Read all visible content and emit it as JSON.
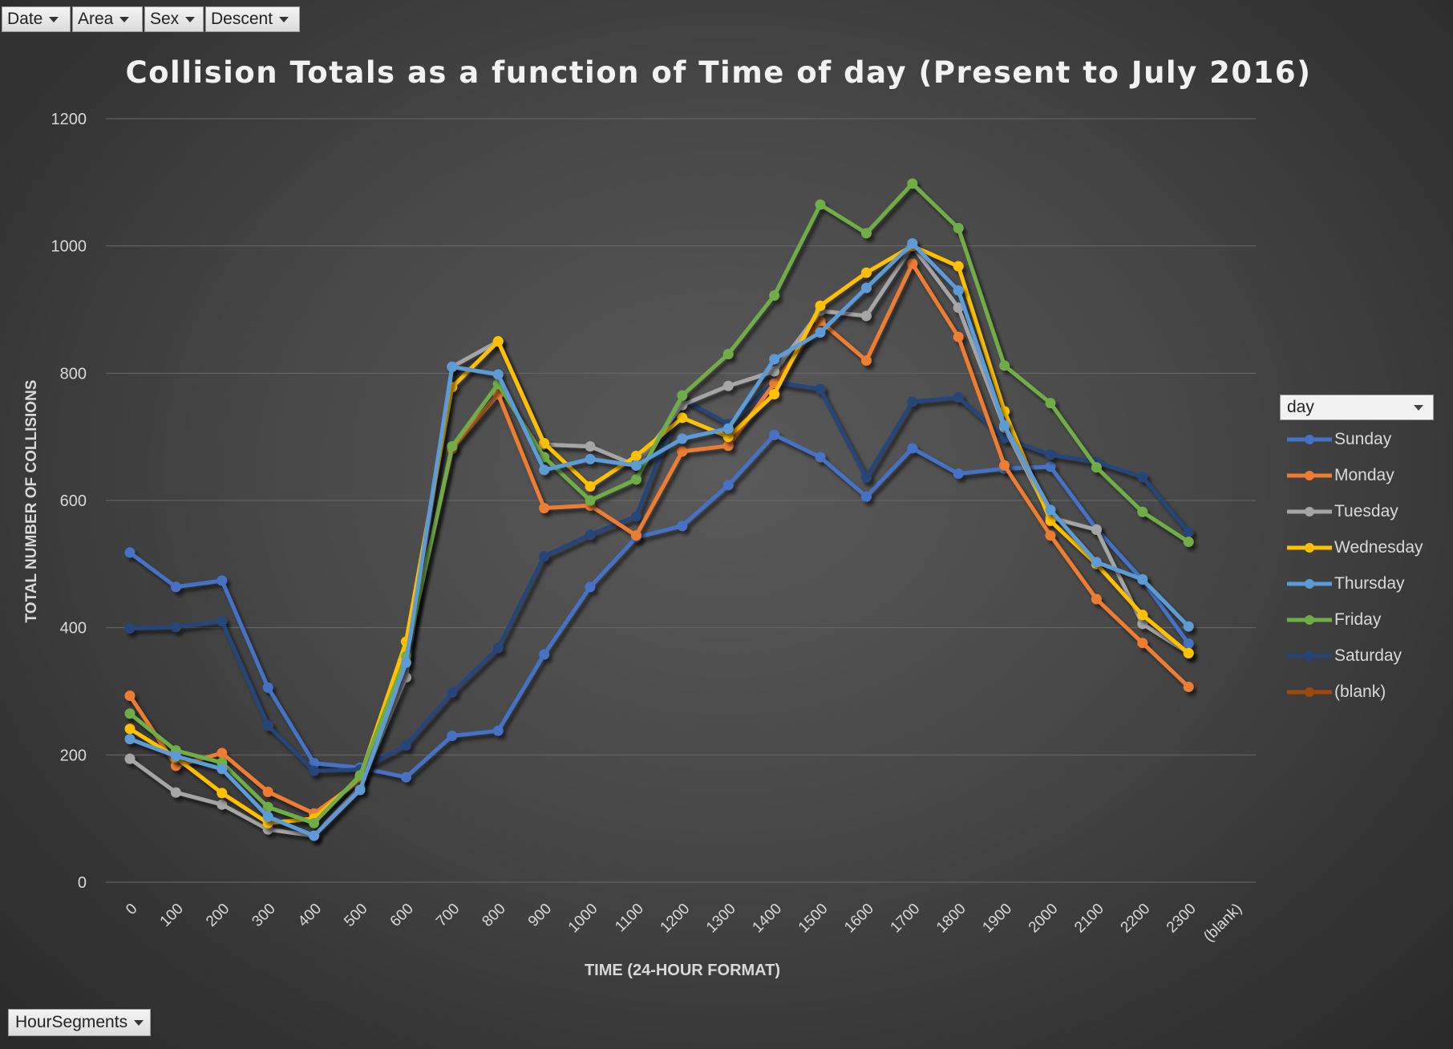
{
  "filters": [
    {
      "label": "Date",
      "name": "date-filter-button"
    },
    {
      "label": "Area",
      "name": "area-filter-button"
    },
    {
      "label": "Sex",
      "name": "sex-filter-button"
    },
    {
      "label": "Descent",
      "name": "descent-filter-button"
    }
  ],
  "bottom_filter": {
    "label": "HourSegments"
  },
  "legend": {
    "dropdown_label": "day"
  },
  "colors": {
    "gridline": "#6a6a6a",
    "text": "#d9d9d9"
  },
  "chart_data": {
    "type": "line",
    "title": "Collision Totals as a function of Time of day (Present to July 2016)",
    "xlabel": "TIME (24-HOUR FORMAT)",
    "ylabel": "TOTAL NUMBER OF COLLISIONS",
    "ylim": [
      0,
      1200
    ],
    "yticks": [
      0,
      200,
      400,
      600,
      800,
      1000,
      1200
    ],
    "grid": true,
    "legend_position": "right",
    "categories": [
      "0",
      "100",
      "200",
      "300",
      "400",
      "500",
      "600",
      "700",
      "800",
      "900",
      "1000",
      "1100",
      "1200",
      "1300",
      "1400",
      "1500",
      "1600",
      "1700",
      "1800",
      "1900",
      "2000",
      "2100",
      "2200",
      "2300",
      "(blank)"
    ],
    "series": [
      {
        "name": "Sunday",
        "color": "#4472c4",
        "values": [
          518,
          464,
          474,
          306,
          187,
          180,
          165,
          230,
          238,
          358,
          464,
          542,
          560,
          624,
          703,
          668,
          606,
          682,
          642,
          650,
          653,
          555,
          475,
          375,
          null
        ]
      },
      {
        "name": "Monday",
        "color": "#ed7d31",
        "values": [
          293,
          183,
          203,
          142,
          108,
          160,
          360,
          681,
          767,
          588,
          592,
          545,
          677,
          686,
          784,
          882,
          820,
          972,
          857,
          655,
          545,
          445,
          376,
          307,
          null
        ]
      },
      {
        "name": "Tuesday",
        "color": "#a5a5a5",
        "values": [
          194,
          141,
          122,
          83,
          73,
          150,
          322,
          810,
          850,
          688,
          685,
          655,
          750,
          780,
          803,
          898,
          890,
          1000,
          903,
          715,
          573,
          554,
          406,
          360,
          null
        ]
      },
      {
        "name": "Wednesday",
        "color": "#ffc000",
        "values": [
          241,
          196,
          140,
          93,
          100,
          165,
          378,
          778,
          850,
          690,
          622,
          670,
          730,
          700,
          767,
          906,
          958,
          1000,
          968,
          740,
          568,
          500,
          420,
          360,
          null
        ]
      },
      {
        "name": "Thursday",
        "color": "#5b9bd5",
        "values": [
          225,
          198,
          178,
          103,
          73,
          145,
          345,
          810,
          798,
          648,
          665,
          655,
          697,
          713,
          822,
          864,
          934,
          1004,
          930,
          718,
          585,
          503,
          476,
          402,
          null
        ]
      },
      {
        "name": "Friday",
        "color": "#70ad47",
        "values": [
          265,
          207,
          188,
          118,
          93,
          168,
          355,
          685,
          783,
          668,
          600,
          633,
          765,
          830,
          922,
          1065,
          1020,
          1098,
          1028,
          812,
          753,
          652,
          582,
          535,
          null
        ]
      },
      {
        "name": "Saturday",
        "color": "#264478",
        "values": [
          399,
          401,
          410,
          246,
          175,
          177,
          215,
          298,
          368,
          512,
          546,
          575,
          760,
          720,
          786,
          775,
          636,
          755,
          762,
          698,
          672,
          660,
          637,
          550,
          null
        ]
      },
      {
        "name": "(blank)",
        "color": "#9e480e",
        "values": [
          null,
          null,
          null,
          null,
          null,
          null,
          null,
          null,
          null,
          null,
          null,
          null,
          null,
          null,
          null,
          null,
          null,
          null,
          null,
          null,
          null,
          null,
          null,
          null,
          null
        ]
      }
    ]
  }
}
